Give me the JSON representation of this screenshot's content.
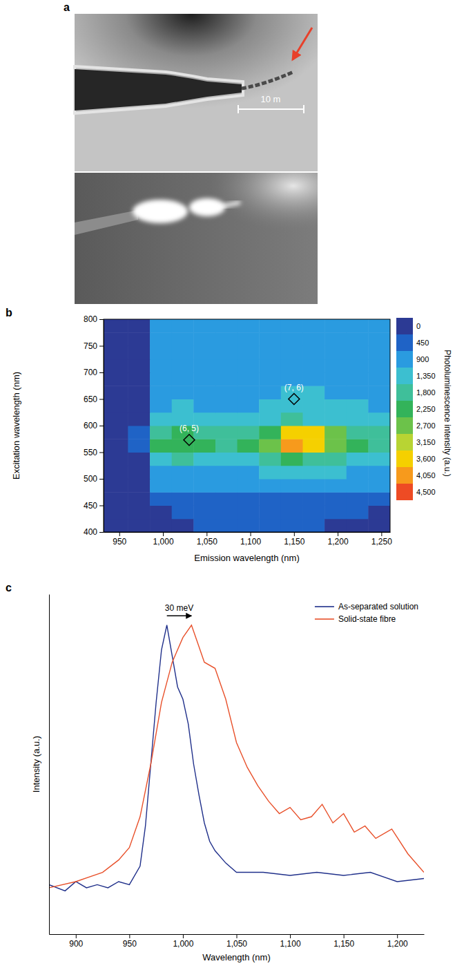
{
  "chart_data": [
    {
      "type": "image",
      "panel_label": "a",
      "scale_bar_label": "10 m"
    },
    {
      "type": "heatmap",
      "panel_label": "b",
      "x_label": "Emission wavelength (nm)",
      "y_label": "Excitation wavelength (nm)",
      "xlim": [
        932,
        1260
      ],
      "xticks": [
        950,
        {
          "value": 1000,
          "label": "1,000"
        },
        {
          "value": 1050,
          "label": "1,050"
        },
        {
          "value": 1100,
          "label": "1,100"
        },
        {
          "value": 1150,
          "label": "1,150"
        },
        {
          "value": 1200,
          "label": "1,200"
        },
        {
          "value": 1250,
          "label": "1,250"
        }
      ],
      "ylim": [
        400,
        800
      ],
      "yticks": [
        400,
        450,
        500,
        550,
        600,
        650,
        700,
        750,
        800
      ],
      "cells": {
        "x_edges": [
          932,
          960,
          985,
          1010,
          1035,
          1060,
          1085,
          1110,
          1135,
          1160,
          1185,
          1210,
          1235,
          1260
        ],
        "y_edges": [
          400,
          425,
          450,
          475,
          500,
          525,
          550,
          575,
          600,
          625,
          650,
          675,
          700,
          725,
          750,
          775,
          800
        ],
        "values": [
          [
            0,
            100,
            300,
            400,
            450,
            450,
            450,
            450,
            450,
            450,
            400,
            400,
            350
          ],
          [
            0,
            150,
            400,
            500,
            500,
            500,
            500,
            550,
            550,
            500,
            500,
            450,
            400
          ],
          [
            0,
            200,
            600,
            700,
            700,
            700,
            700,
            750,
            800,
            750,
            700,
            650,
            600
          ],
          [
            0,
            300,
            900,
            1000,
            1000,
            1000,
            1000,
            1100,
            1200,
            1100,
            1000,
            950,
            900
          ],
          [
            0,
            350,
            1200,
            1300,
            1300,
            1300,
            1300,
            1400,
            1600,
            1500,
            1350,
            1300,
            1200
          ],
          [
            0,
            400,
            1600,
            1800,
            1700,
            1700,
            1700,
            1900,
            2400,
            2200,
            1800,
            1600,
            1500
          ],
          [
            0,
            500,
            2300,
            2600,
            2300,
            2200,
            2300,
            2700,
            4300,
            4000,
            3000,
            2400,
            2000
          ],
          [
            0,
            450,
            2100,
            2400,
            2100,
            2000,
            2100,
            2500,
            3900,
            3700,
            2800,
            2200,
            1900
          ],
          [
            0,
            400,
            1500,
            1600,
            1500,
            1500,
            1500,
            1600,
            1800,
            1700,
            1600,
            1500,
            1400
          ],
          [
            0,
            350,
            1300,
            1400,
            1300,
            1300,
            1300,
            1400,
            1500,
            1500,
            1400,
            1350,
            1300
          ],
          [
            0,
            300,
            1200,
            1300,
            1200,
            1200,
            1200,
            1300,
            1400,
            1400,
            1300,
            1250,
            1200
          ],
          [
            0,
            300,
            1100,
            1200,
            1150,
            1150,
            1150,
            1200,
            1300,
            1300,
            1250,
            1200,
            1100
          ],
          [
            0,
            300,
            1050,
            1150,
            1100,
            1100,
            1100,
            1150,
            1250,
            1250,
            1200,
            1150,
            1050
          ],
          [
            0,
            300,
            1000,
            1100,
            1050,
            1050,
            1050,
            1100,
            1200,
            1200,
            1150,
            1100,
            1000
          ],
          [
            0,
            250,
            950,
            1050,
            1000,
            1000,
            1000,
            1050,
            1150,
            1150,
            1100,
            1050,
            950
          ],
          [
            0,
            250,
            900,
            1000,
            950,
            950,
            950,
            1000,
            1100,
            1100,
            1050,
            1000,
            900
          ]
        ]
      },
      "colorbar": {
        "label": "Photoluminescence intensity (a.u.)",
        "range": [
          0,
          4500
        ],
        "ticks": [
          0,
          450,
          900,
          {
            "value": 1350,
            "label": "1,350"
          },
          {
            "value": 1800,
            "label": "1,800"
          },
          {
            "value": 2250,
            "label": "2,250"
          },
          {
            "value": 2700,
            "label": "2,700"
          },
          {
            "value": 3150,
            "label": "3,150"
          },
          {
            "value": 3600,
            "label": "3,600"
          },
          {
            "value": 4050,
            "label": "4,050"
          },
          {
            "value": 4500,
            "label": "4,500"
          }
        ],
        "colors": [
          "#2c3a94",
          "#1f63c6",
          "#2a9be0",
          "#3cbfd0",
          "#3fbf9a",
          "#33b35a",
          "#6cc24a",
          "#b8d433",
          "#f5d000",
          "#f79a1c",
          "#ee4b24"
        ]
      },
      "annotations": [
        {
          "text": "(6, 5)",
          "x": 1030,
          "y": 573,
          "marker": "diamond"
        },
        {
          "text": "(7, 6)",
          "x": 1150,
          "y": 650,
          "marker": "diamond"
        }
      ]
    },
    {
      "type": "line",
      "panel_label": "c",
      "x_label": "Wavelength (nm)",
      "y_label": "Intensity (a.u.)",
      "xlim": [
        875,
        1225
      ],
      "xticks": [
        900,
        950,
        {
          "value": 1000,
          "label": "1,000"
        },
        {
          "value": 1050,
          "label": "1,050"
        },
        {
          "value": 1100,
          "label": "1,100"
        },
        {
          "value": 1150,
          "label": "1,150"
        },
        {
          "value": 1200,
          "label": "1,200"
        }
      ],
      "ylim": [
        0,
        1.1
      ],
      "tick_labels": "x",
      "legend": "upper right",
      "series": [
        {
          "name": "As-separated solution",
          "color": "#1f2f8a",
          "x": [
            875,
            890,
            900,
            910,
            920,
            930,
            940,
            950,
            960,
            965,
            970,
            975,
            980,
            985,
            990,
            995,
            1000,
            1005,
            1010,
            1015,
            1020,
            1025,
            1030,
            1040,
            1050,
            1075,
            1100,
            1125,
            1150,
            1175,
            1200,
            1225
          ],
          "values": [
            0.16,
            0.14,
            0.17,
            0.15,
            0.16,
            0.15,
            0.17,
            0.16,
            0.22,
            0.35,
            0.55,
            0.75,
            0.92,
            1.0,
            0.9,
            0.8,
            0.76,
            0.68,
            0.55,
            0.45,
            0.36,
            0.3,
            0.27,
            0.23,
            0.2,
            0.2,
            0.19,
            0.2,
            0.19,
            0.2,
            0.17,
            0.18
          ]
        },
        {
          "name": "Solid-state fibre",
          "color": "#e8502a",
          "x": [
            875,
            900,
            925,
            940,
            950,
            960,
            970,
            980,
            990,
            1000,
            1008,
            1015,
            1020,
            1030,
            1040,
            1050,
            1060,
            1070,
            1080,
            1090,
            1100,
            1110,
            1120,
            1130,
            1140,
            1150,
            1160,
            1170,
            1180,
            1195,
            1210,
            1225
          ],
          "values": [
            0.15,
            0.17,
            0.2,
            0.24,
            0.28,
            0.38,
            0.55,
            0.75,
            0.88,
            0.96,
            1.0,
            0.93,
            0.88,
            0.86,
            0.76,
            0.62,
            0.54,
            0.48,
            0.43,
            0.39,
            0.41,
            0.37,
            0.38,
            0.42,
            0.36,
            0.39,
            0.33,
            0.35,
            0.31,
            0.34,
            0.26,
            0.2
          ]
        }
      ],
      "annotations": [
        {
          "text": "30 meV",
          "x": [
            985,
            1008
          ],
          "y": 1.03
        }
      ]
    }
  ]
}
